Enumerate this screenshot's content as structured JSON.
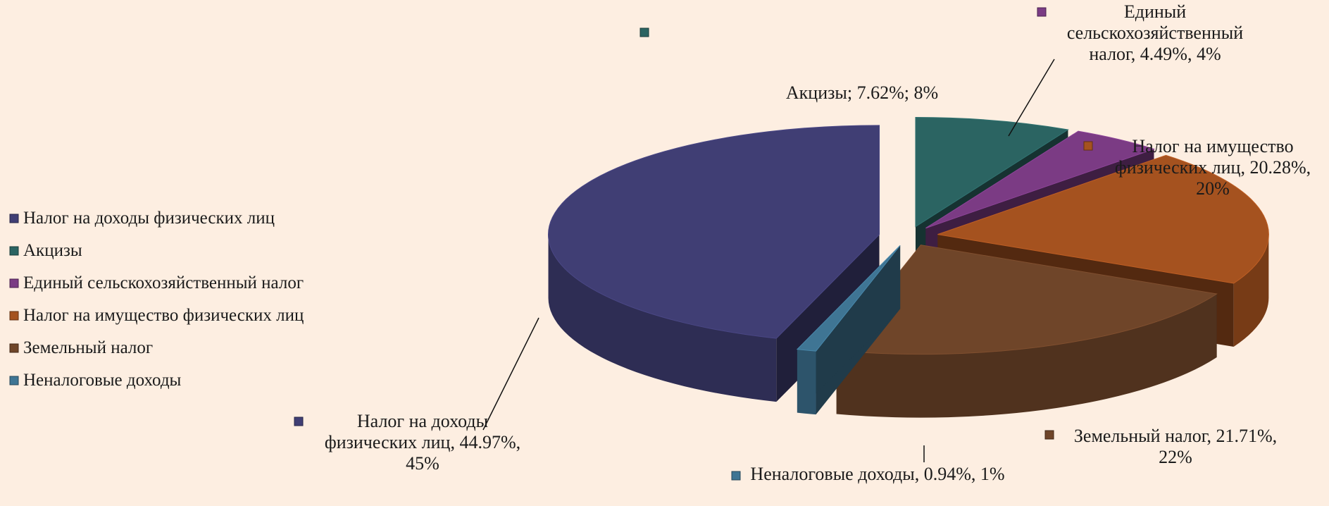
{
  "chart_data": {
    "type": "pie",
    "3d": true,
    "exploded": true,
    "legend": "left",
    "categories": [
      "Налог на доходы физических лиц",
      "Акцизы",
      "Единый сельскохозяйственный налог",
      "Налог на имущество физических лиц",
      "Земельный налог",
      "Неналоговые доходы"
    ],
    "values": [
      44.97,
      7.62,
      4.49,
      20.28,
      21.71,
      0.94
    ],
    "value_labels": [
      "Налог на доходы физических лиц, 44.97%, 45%",
      "Акцизы; 7.62%; 8%",
      "Единый сельскохозяйственный налог, 4.49%, 4%",
      "Налог на имущество физических лиц, 20.28%, 20%",
      "Земельный налог, 21.71%, 22%",
      "Неналоговые доходы, 0.94%, 1%"
    ],
    "colors": [
      "#403e74",
      "#2b6462",
      "#7b3b84",
      "#a5521f",
      "#6f4529",
      "#3f7594"
    ]
  }
}
